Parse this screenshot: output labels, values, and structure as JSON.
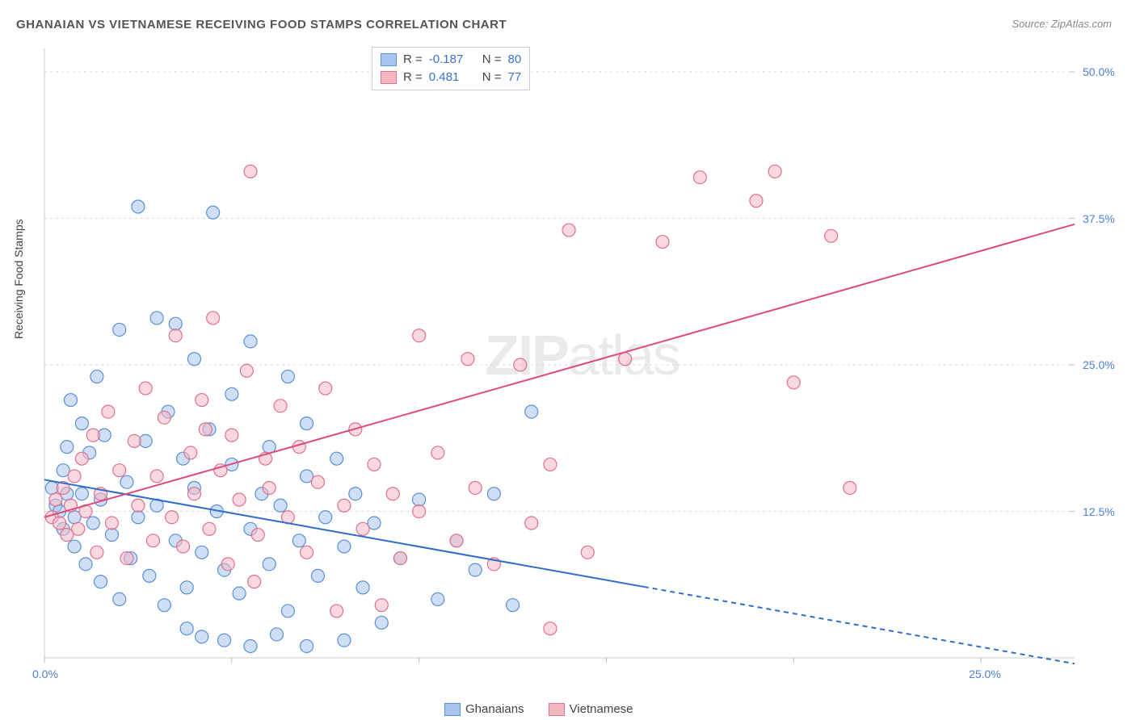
{
  "title": "GHANAIAN VS VIETNAMESE RECEIVING FOOD STAMPS CORRELATION CHART",
  "source": "Source: ZipAtlas.com",
  "ylabel": "Receiving Food Stamps",
  "watermark_bold": "ZIP",
  "watermark_light": "atlas",
  "chart": {
    "type": "scatter",
    "background_color": "#ffffff",
    "grid_color": "#d8d8d8",
    "axis_color": "#cccccc",
    "tick_color": "#bbbbbb",
    "xlim": [
      0,
      27.5
    ],
    "ylim": [
      0,
      52
    ],
    "x_ticks": [
      0,
      5,
      10,
      15,
      20,
      25
    ],
    "x_tick_labels": {
      "0": "0.0%",
      "25": "25.0%"
    },
    "y_ticks": [
      12.5,
      25.0,
      37.5,
      50.0
    ],
    "y_tick_labels": {
      "12.5": "12.5%",
      "25.0": "25.0%",
      "37.5": "37.5%",
      "50.0": "50.0%"
    },
    "y_gridlines": [
      12.5,
      25.0,
      37.5,
      50.0
    ],
    "marker_radius": 8,
    "marker_stroke_width": 1.2,
    "line_width": 2,
    "series": [
      {
        "name": "Ghanaians",
        "fill": "#a8c5ee",
        "stroke": "#5a8fd6",
        "fill_opacity": 0.55,
        "r": -0.187,
        "n": 80,
        "trend": {
          "x1": 0,
          "y1": 15.2,
          "x2": 27.5,
          "y2": -0.5,
          "solid_until_x": 16,
          "color": "#2e6dc9"
        },
        "points": [
          [
            0.2,
            14.5
          ],
          [
            0.3,
            13.0
          ],
          [
            0.4,
            12.5
          ],
          [
            0.5,
            16.0
          ],
          [
            0.5,
            11.0
          ],
          [
            0.6,
            14.0
          ],
          [
            0.6,
            18.0
          ],
          [
            0.7,
            22.0
          ],
          [
            0.8,
            12.0
          ],
          [
            0.8,
            9.5
          ],
          [
            1.0,
            20.0
          ],
          [
            1.0,
            14.0
          ],
          [
            1.1,
            8.0
          ],
          [
            1.2,
            17.5
          ],
          [
            1.3,
            11.5
          ],
          [
            1.4,
            24.0
          ],
          [
            1.5,
            13.5
          ],
          [
            1.5,
            6.5
          ],
          [
            1.6,
            19.0
          ],
          [
            1.8,
            10.5
          ],
          [
            2.0,
            28.0
          ],
          [
            2.0,
            5.0
          ],
          [
            2.2,
            15.0
          ],
          [
            2.3,
            8.5
          ],
          [
            2.5,
            38.5
          ],
          [
            2.5,
            12.0
          ],
          [
            2.7,
            18.5
          ],
          [
            2.8,
            7.0
          ],
          [
            3.0,
            29.0
          ],
          [
            3.0,
            13.0
          ],
          [
            3.2,
            4.5
          ],
          [
            3.3,
            21.0
          ],
          [
            3.5,
            28.5
          ],
          [
            3.5,
            10.0
          ],
          [
            3.7,
            17.0
          ],
          [
            3.8,
            6.0
          ],
          [
            4.0,
            14.5
          ],
          [
            4.0,
            25.5
          ],
          [
            4.2,
            9.0
          ],
          [
            4.4,
            19.5
          ],
          [
            4.5,
            38.0
          ],
          [
            4.6,
            12.5
          ],
          [
            4.8,
            7.5
          ],
          [
            5.0,
            16.5
          ],
          [
            5.0,
            22.5
          ],
          [
            5.2,
            5.5
          ],
          [
            5.5,
            11.0
          ],
          [
            5.5,
            27.0
          ],
          [
            5.8,
            14.0
          ],
          [
            6.0,
            8.0
          ],
          [
            6.0,
            18.0
          ],
          [
            6.3,
            13.0
          ],
          [
            6.5,
            24.0
          ],
          [
            6.5,
            4.0
          ],
          [
            6.8,
            10.0
          ],
          [
            7.0,
            15.5
          ],
          [
            7.0,
            20.0
          ],
          [
            7.3,
            7.0
          ],
          [
            7.5,
            12.0
          ],
          [
            7.8,
            17.0
          ],
          [
            8.0,
            1.5
          ],
          [
            8.0,
            9.5
          ],
          [
            8.3,
            14.0
          ],
          [
            8.5,
            6.0
          ],
          [
            8.8,
            11.5
          ],
          [
            9.0,
            3.0
          ],
          [
            9.5,
            8.5
          ],
          [
            10.0,
            13.5
          ],
          [
            10.5,
            5.0
          ],
          [
            11.0,
            10.0
          ],
          [
            11.5,
            7.5
          ],
          [
            12.0,
            14.0
          ],
          [
            12.5,
            4.5
          ],
          [
            13.0,
            21.0
          ],
          [
            4.8,
            1.5
          ],
          [
            5.5,
            1.0
          ],
          [
            6.2,
            2.0
          ],
          [
            7.0,
            1.0
          ],
          [
            3.8,
            2.5
          ],
          [
            4.2,
            1.8
          ]
        ]
      },
      {
        "name": "Vietnamese",
        "fill": "#f4b8c4",
        "stroke": "#e0708c",
        "fill_opacity": 0.55,
        "r": 0.481,
        "n": 77,
        "trend": {
          "x1": 0,
          "y1": 12.0,
          "x2": 27.5,
          "y2": 37.0,
          "solid_until_x": 27.5,
          "color": "#e04a7a"
        },
        "points": [
          [
            0.2,
            12.0
          ],
          [
            0.3,
            13.5
          ],
          [
            0.4,
            11.5
          ],
          [
            0.5,
            14.5
          ],
          [
            0.6,
            10.5
          ],
          [
            0.7,
            13.0
          ],
          [
            0.8,
            15.5
          ],
          [
            0.9,
            11.0
          ],
          [
            1.0,
            17.0
          ],
          [
            1.1,
            12.5
          ],
          [
            1.3,
            19.0
          ],
          [
            1.4,
            9.0
          ],
          [
            1.5,
            14.0
          ],
          [
            1.7,
            21.0
          ],
          [
            1.8,
            11.5
          ],
          [
            2.0,
            16.0
          ],
          [
            2.2,
            8.5
          ],
          [
            2.4,
            18.5
          ],
          [
            2.5,
            13.0
          ],
          [
            2.7,
            23.0
          ],
          [
            2.9,
            10.0
          ],
          [
            3.0,
            15.5
          ],
          [
            3.2,
            20.5
          ],
          [
            3.4,
            12.0
          ],
          [
            3.5,
            27.5
          ],
          [
            3.7,
            9.5
          ],
          [
            3.9,
            17.5
          ],
          [
            4.0,
            14.0
          ],
          [
            4.2,
            22.0
          ],
          [
            4.4,
            11.0
          ],
          [
            4.5,
            29.0
          ],
          [
            4.7,
            16.0
          ],
          [
            4.9,
            8.0
          ],
          [
            5.0,
            19.0
          ],
          [
            5.2,
            13.5
          ],
          [
            5.4,
            24.5
          ],
          [
            5.5,
            41.5
          ],
          [
            5.7,
            10.5
          ],
          [
            5.9,
            17.0
          ],
          [
            6.0,
            14.5
          ],
          [
            6.3,
            21.5
          ],
          [
            6.5,
            12.0
          ],
          [
            6.8,
            18.0
          ],
          [
            7.0,
            9.0
          ],
          [
            7.3,
            15.0
          ],
          [
            7.5,
            23.0
          ],
          [
            7.8,
            4.0
          ],
          [
            8.0,
            13.0
          ],
          [
            8.3,
            19.5
          ],
          [
            8.5,
            11.0
          ],
          [
            8.8,
            16.5
          ],
          [
            9.0,
            4.5
          ],
          [
            9.3,
            14.0
          ],
          [
            9.5,
            8.5
          ],
          [
            10.0,
            12.5
          ],
          [
            10.0,
            27.5
          ],
          [
            10.5,
            17.5
          ],
          [
            11.0,
            10.0
          ],
          [
            11.3,
            25.5
          ],
          [
            11.5,
            14.5
          ],
          [
            12.0,
            8.0
          ],
          [
            12.7,
            25.0
          ],
          [
            13.0,
            11.5
          ],
          [
            13.5,
            16.5
          ],
          [
            14.0,
            36.5
          ],
          [
            14.5,
            9.0
          ],
          [
            15.5,
            25.5
          ],
          [
            16.5,
            35.5
          ],
          [
            17.5,
            41.0
          ],
          [
            13.5,
            2.5
          ],
          [
            19.0,
            39.0
          ],
          [
            19.5,
            41.5
          ],
          [
            20.0,
            23.5
          ],
          [
            21.0,
            36.0
          ],
          [
            21.5,
            14.5
          ],
          [
            4.3,
            19.5
          ],
          [
            5.6,
            6.5
          ]
        ]
      }
    ]
  },
  "legend_top": {
    "rows": [
      {
        "swatch_fill": "#a8c5ee",
        "swatch_stroke": "#5a8fd6",
        "r_label": "R =",
        "r_val": "-0.187",
        "n_label": "N =",
        "n_val": "80"
      },
      {
        "swatch_fill": "#f4b8c4",
        "swatch_stroke": "#e0708c",
        "r_label": "R =",
        "r_val": "0.481",
        "n_label": "N =",
        "n_val": "77"
      }
    ]
  },
  "legend_bottom": {
    "items": [
      {
        "swatch_fill": "#a8c5ee",
        "swatch_stroke": "#5a8fd6",
        "label": "Ghanaians"
      },
      {
        "swatch_fill": "#f4b8c4",
        "swatch_stroke": "#e0708c",
        "label": "Vietnamese"
      }
    ]
  }
}
